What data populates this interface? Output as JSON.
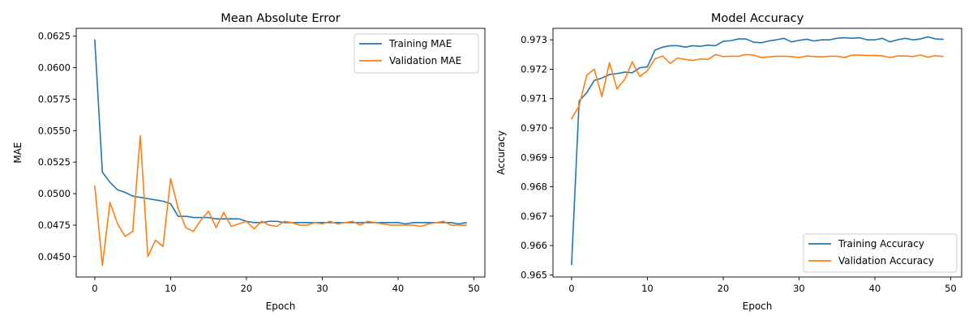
{
  "chart_data": [
    {
      "type": "line",
      "title": "Mean Absolute Error",
      "xlabel": "Epoch",
      "ylabel": "MAE",
      "xlim": [
        -2.45,
        51.45
      ],
      "ylim": [
        0.04338,
        0.06312
      ],
      "xticks": [
        0,
        10,
        20,
        30,
        40,
        50
      ],
      "yticks": [
        0.045,
        0.0475,
        0.05,
        0.0525,
        0.055,
        0.0575,
        0.06,
        0.0625
      ],
      "ytick_labels": [
        "0.0450",
        "0.0475",
        "0.0500",
        "0.0525",
        "0.0550",
        "0.0575",
        "0.0600",
        "0.0625"
      ],
      "legend": "top-right",
      "grid": false,
      "x": [
        0,
        1,
        2,
        3,
        4,
        5,
        6,
        7,
        8,
        9,
        10,
        11,
        12,
        13,
        14,
        15,
        16,
        17,
        18,
        19,
        20,
        21,
        22,
        23,
        24,
        25,
        26,
        27,
        28,
        29,
        30,
        31,
        32,
        33,
        34,
        35,
        36,
        37,
        38,
        39,
        40,
        41,
        42,
        43,
        44,
        45,
        46,
        47,
        48,
        49
      ],
      "series": [
        {
          "name": "Training MAE",
          "color": "#1f77b4",
          "values": [
            0.0622,
            0.0517,
            0.0509,
            0.0503,
            0.0501,
            0.0498,
            0.0497,
            0.0496,
            0.0495,
            0.0494,
            0.0492,
            0.0482,
            0.0482,
            0.0481,
            0.0481,
            0.0481,
            0.048,
            0.048,
            0.048,
            0.048,
            0.0478,
            0.0477,
            0.0477,
            0.0478,
            0.0478,
            0.0477,
            0.0477,
            0.0477,
            0.0477,
            0.0477,
            0.0477,
            0.0477,
            0.0477,
            0.0477,
            0.0477,
            0.0477,
            0.0477,
            0.0477,
            0.0477,
            0.0477,
            0.0477,
            0.0476,
            0.0477,
            0.0477,
            0.0477,
            0.0477,
            0.0477,
            0.0477,
            0.0476,
            0.0477
          ]
        },
        {
          "name": "Validation MAE",
          "color": "#ff7f0e",
          "values": [
            0.0506,
            0.0443,
            0.0493,
            0.0476,
            0.0466,
            0.047,
            0.0546,
            0.045,
            0.0463,
            0.0458,
            0.0512,
            0.0488,
            0.0473,
            0.047,
            0.0479,
            0.0486,
            0.0473,
            0.0485,
            0.0474,
            0.0476,
            0.0478,
            0.0472,
            0.0478,
            0.0475,
            0.0474,
            0.0478,
            0.0477,
            0.0475,
            0.0475,
            0.0477,
            0.0476,
            0.0478,
            0.0476,
            0.0477,
            0.0478,
            0.0475,
            0.0478,
            0.0477,
            0.0476,
            0.0475,
            0.0475,
            0.0475,
            0.0475,
            0.0474,
            0.0476,
            0.0477,
            0.0478,
            0.0475,
            0.0475,
            0.0475
          ]
        }
      ]
    },
    {
      "type": "line",
      "title": "Model Accuracy",
      "xlabel": "Epoch",
      "ylabel": "Accuracy",
      "xlim": [
        -2.45,
        51.45
      ],
      "ylim": [
        0.96493,
        0.97339
      ],
      "xticks": [
        0,
        10,
        20,
        30,
        40,
        50
      ],
      "yticks": [
        0.965,
        0.966,
        0.967,
        0.968,
        0.969,
        0.97,
        0.971,
        0.972,
        0.973
      ],
      "ytick_labels": [
        "0.965",
        "0.966",
        "0.967",
        "0.968",
        "0.969",
        "0.970",
        "0.971",
        "0.972",
        "0.973"
      ],
      "legend": "bottom-right",
      "grid": false,
      "x": [
        0,
        1,
        2,
        3,
        4,
        5,
        6,
        7,
        8,
        9,
        10,
        11,
        12,
        13,
        14,
        15,
        16,
        17,
        18,
        19,
        20,
        21,
        22,
        23,
        24,
        25,
        26,
        27,
        28,
        29,
        30,
        31,
        32,
        33,
        34,
        35,
        36,
        37,
        38,
        39,
        40,
        41,
        42,
        43,
        44,
        45,
        46,
        47,
        48,
        49
      ],
      "series": [
        {
          "name": "Training Accuracy",
          "color": "#1f77b4",
          "values": [
            0.96535,
            0.97092,
            0.9712,
            0.97162,
            0.9717,
            0.97182,
            0.97185,
            0.9719,
            0.97188,
            0.97205,
            0.97208,
            0.97265,
            0.97275,
            0.9728,
            0.9728,
            0.97275,
            0.9728,
            0.97278,
            0.97282,
            0.9728,
            0.97295,
            0.97297,
            0.97303,
            0.97303,
            0.97292,
            0.9729,
            0.97296,
            0.973,
            0.97305,
            0.97293,
            0.97298,
            0.97302,
            0.97296,
            0.973,
            0.973,
            0.97305,
            0.97307,
            0.97305,
            0.97307,
            0.973,
            0.973,
            0.97305,
            0.97293,
            0.973,
            0.97305,
            0.973,
            0.97303,
            0.9731,
            0.97303,
            0.97302
          ]
        },
        {
          "name": "Validation Accuracy",
          "color": "#ff7f0e",
          "values": [
            0.97032,
            0.97075,
            0.9718,
            0.972,
            0.97107,
            0.97222,
            0.97133,
            0.97165,
            0.97225,
            0.97175,
            0.97195,
            0.97235,
            0.97245,
            0.9722,
            0.97238,
            0.97233,
            0.9723,
            0.97235,
            0.97233,
            0.9725,
            0.97243,
            0.97244,
            0.97244,
            0.9725,
            0.97248,
            0.9724,
            0.97242,
            0.97244,
            0.97244,
            0.97243,
            0.9724,
            0.97245,
            0.97243,
            0.97242,
            0.97244,
            0.97244,
            0.9724,
            0.97248,
            0.97248,
            0.97247,
            0.97247,
            0.97245,
            0.9724,
            0.97245,
            0.97245,
            0.97243,
            0.97248,
            0.97241,
            0.97246,
            0.97243
          ]
        }
      ]
    }
  ]
}
